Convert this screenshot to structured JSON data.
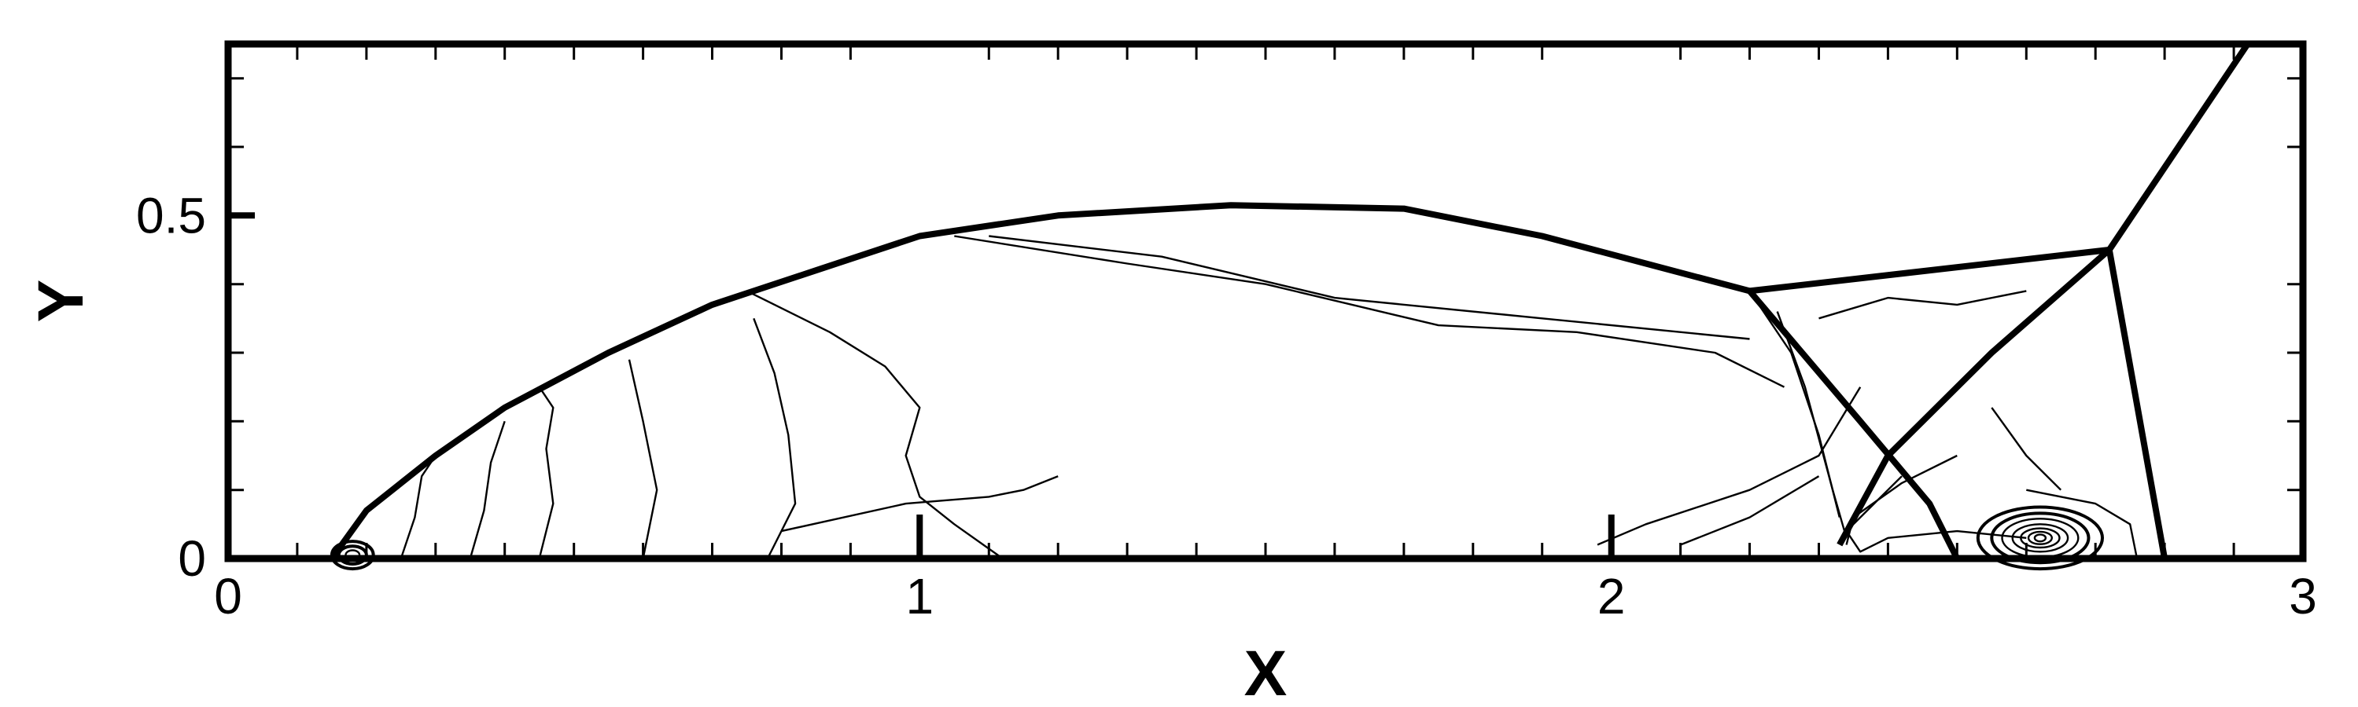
{
  "chart_data": {
    "type": "contour",
    "xlabel": "X",
    "ylabel": "Y",
    "xlim": [
      0,
      3
    ],
    "ylim": [
      0,
      0.75
    ],
    "x_ticks": [
      0,
      1,
      2,
      3
    ],
    "x_tick_labels": [
      "0",
      "1",
      "2",
      "3"
    ],
    "y_ticks": [
      0,
      0.5
    ],
    "y_tick_labels": [
      "0",
      "0.5"
    ],
    "x_minor_step": 0.1,
    "y_minor_step": 0.1,
    "grid": false,
    "legend": "none",
    "bold_ground_ticks_at": [
      1,
      2
    ],
    "shocks": [
      {
        "name": "bow-shock",
        "points": [
          [
            0.15,
            0
          ],
          [
            0.2,
            0.07
          ],
          [
            0.3,
            0.15
          ],
          [
            0.4,
            0.22
          ],
          [
            0.55,
            0.3
          ],
          [
            0.7,
            0.37
          ],
          [
            0.85,
            0.42
          ],
          [
            1.0,
            0.47
          ],
          [
            1.2,
            0.5
          ],
          [
            1.45,
            0.515
          ],
          [
            1.7,
            0.51
          ],
          [
            1.9,
            0.47
          ],
          [
            2.05,
            0.43
          ],
          [
            2.2,
            0.39
          ]
        ]
      },
      {
        "name": "reflected-front",
        "points": [
          [
            2.2,
            0.39
          ],
          [
            2.72,
            0.45
          ]
        ]
      },
      {
        "name": "mach-stem",
        "points": [
          [
            2.72,
            0.45
          ],
          [
            2.8,
            0
          ]
        ]
      },
      {
        "name": "transmitted-shock",
        "points": [
          [
            2.72,
            0.45
          ],
          [
            2.92,
            0.75
          ]
        ]
      },
      {
        "name": "incident-shock",
        "points": [
          [
            2.2,
            0.39
          ],
          [
            2.36,
            0.2
          ],
          [
            2.46,
            0.08
          ],
          [
            2.5,
            0
          ]
        ]
      },
      {
        "name": "slip-line",
        "points": [
          [
            2.72,
            0.45
          ],
          [
            2.55,
            0.3
          ],
          [
            2.4,
            0.15
          ],
          [
            2.33,
            0.02
          ]
        ]
      }
    ],
    "contours": [
      {
        "name": "contour-front-1",
        "points": [
          [
            0.25,
            0
          ],
          [
            0.27,
            0.06
          ],
          [
            0.28,
            0.12
          ],
          [
            0.3,
            0.15
          ]
        ]
      },
      {
        "name": "contour-front-2",
        "points": [
          [
            0.35,
            0
          ],
          [
            0.37,
            0.07
          ],
          [
            0.38,
            0.14
          ],
          [
            0.4,
            0.2
          ]
        ]
      },
      {
        "name": "contour-front-3",
        "points": [
          [
            0.45,
            0
          ],
          [
            0.47,
            0.08
          ],
          [
            0.46,
            0.16
          ],
          [
            0.47,
            0.22
          ],
          [
            0.45,
            0.25
          ]
        ]
      },
      {
        "name": "contour-front-4",
        "points": [
          [
            0.6,
            0
          ],
          [
            0.62,
            0.1
          ],
          [
            0.6,
            0.2
          ],
          [
            0.58,
            0.29
          ]
        ]
      },
      {
        "name": "contour-front-5",
        "points": [
          [
            0.78,
            0
          ],
          [
            0.82,
            0.08
          ],
          [
            0.81,
            0.18
          ],
          [
            0.79,
            0.27
          ],
          [
            0.76,
            0.35
          ]
        ]
      },
      {
        "name": "contour-mid",
        "points": [
          [
            0.8,
            0.04
          ],
          [
            0.98,
            0.08
          ],
          [
            1.1,
            0.09
          ],
          [
            1.15,
            0.1
          ],
          [
            1.2,
            0.12
          ]
        ]
      },
      {
        "name": "contour-upper",
        "points": [
          [
            0.75,
            0.39
          ],
          [
            0.87,
            0.33
          ],
          [
            0.95,
            0.28
          ],
          [
            1.0,
            0.22
          ],
          [
            0.98,
            0.15
          ],
          [
            1.0,
            0.09
          ],
          [
            1.05,
            0.05
          ],
          [
            1.12,
            0.0
          ]
        ]
      },
      {
        "name": "contour-long",
        "points": [
          [
            1.05,
            0.47
          ],
          [
            1.3,
            0.43
          ],
          [
            1.5,
            0.4
          ],
          [
            1.75,
            0.34
          ],
          [
            1.95,
            0.33
          ],
          [
            2.15,
            0.3
          ],
          [
            2.25,
            0.25
          ]
        ]
      },
      {
        "name": "contour-long-2",
        "points": [
          [
            1.1,
            0.47
          ],
          [
            1.35,
            0.44
          ],
          [
            1.6,
            0.38
          ],
          [
            1.9,
            0.35
          ],
          [
            2.2,
            0.32
          ]
        ]
      },
      {
        "name": "contour-lower-1",
        "points": [
          [
            1.98,
            0.02
          ],
          [
            2.05,
            0.05
          ],
          [
            2.2,
            0.1
          ],
          [
            2.3,
            0.15
          ],
          [
            2.36,
            0.25
          ]
        ]
      },
      {
        "name": "contour-lower-2",
        "points": [
          [
            2.1,
            0.02
          ],
          [
            2.2,
            0.06
          ],
          [
            2.3,
            0.12
          ]
        ]
      },
      {
        "name": "contour-top-right",
        "points": [
          [
            2.3,
            0.35
          ],
          [
            2.4,
            0.38
          ],
          [
            2.5,
            0.37
          ],
          [
            2.6,
            0.39
          ]
        ]
      },
      {
        "name": "contour-fan-1",
        "points": [
          [
            2.2,
            0.39
          ],
          [
            2.26,
            0.3
          ],
          [
            2.3,
            0.18
          ],
          [
            2.33,
            0.06
          ]
        ]
      },
      {
        "name": "contour-fan-2",
        "points": [
          [
            2.24,
            0.36
          ],
          [
            2.28,
            0.25
          ],
          [
            2.32,
            0.1
          ],
          [
            2.34,
            0.03
          ]
        ]
      },
      {
        "name": "contour-fan-3",
        "points": [
          [
            2.42,
            0.12
          ],
          [
            2.38,
            0.08
          ],
          [
            2.34,
            0.04
          ],
          [
            2.36,
            0.01
          ],
          [
            2.4,
            0.03
          ],
          [
            2.5,
            0.04
          ],
          [
            2.6,
            0.03
          ]
        ]
      },
      {
        "name": "contour-fan-4",
        "points": [
          [
            2.5,
            0.15
          ],
          [
            2.42,
            0.11
          ],
          [
            2.35,
            0.06
          ],
          [
            2.34,
            0.02
          ]
        ]
      },
      {
        "name": "contour-right-1",
        "points": [
          [
            2.6,
            0.1
          ],
          [
            2.7,
            0.08
          ],
          [
            2.75,
            0.05
          ],
          [
            2.76,
            0.0
          ]
        ]
      },
      {
        "name": "contour-right-2",
        "points": [
          [
            2.55,
            0.22
          ],
          [
            2.6,
            0.15
          ],
          [
            2.65,
            0.1
          ]
        ]
      }
    ],
    "vortices": [
      {
        "name": "vortex-main",
        "center": [
          2.62,
          0.03
        ],
        "radii": [
          [
            0.09,
            0.045
          ],
          [
            0.07,
            0.036
          ],
          [
            0.055,
            0.028
          ],
          [
            0.04,
            0.02
          ],
          [
            0.028,
            0.014
          ],
          [
            0.017,
            0.009
          ],
          [
            0.008,
            0.005
          ]
        ]
      },
      {
        "name": "vortex-small",
        "center": [
          0.18,
          0.005
        ],
        "radii": [
          [
            0.03,
            0.02
          ],
          [
            0.02,
            0.013
          ],
          [
            0.01,
            0.007
          ]
        ]
      }
    ]
  }
}
